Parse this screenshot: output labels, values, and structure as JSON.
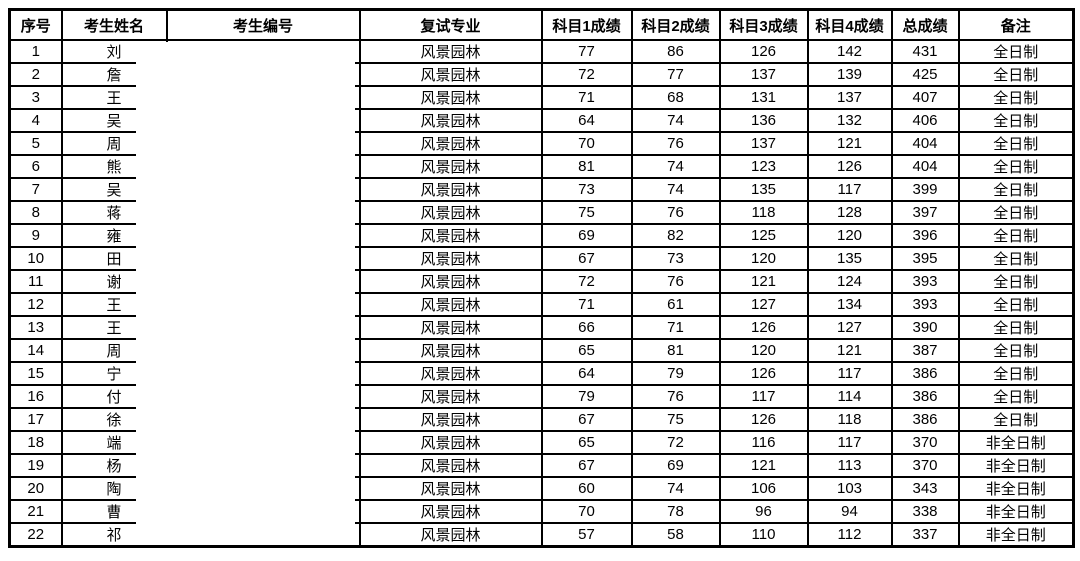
{
  "page": {
    "background": "#ffffff",
    "text_color": "#000000",
    "border_color": "#000000"
  },
  "table": {
    "columns": [
      {
        "key": "no",
        "label": "序号"
      },
      {
        "key": "name",
        "label": "考生姓名"
      },
      {
        "key": "code",
        "label": "考生编号"
      },
      {
        "key": "major",
        "label": "复试专业"
      },
      {
        "key": "s1",
        "label": "科目1成绩"
      },
      {
        "key": "s2",
        "label": "科目2成绩"
      },
      {
        "key": "s3",
        "label": "科目3成绩"
      },
      {
        "key": "s4",
        "label": "科目4成绩"
      },
      {
        "key": "total",
        "label": "总成绩"
      },
      {
        "key": "note",
        "label": "备注"
      }
    ],
    "redaction": {
      "present": true,
      "color": "#ffffff",
      "description": "White box covers the right part of every candidate name and the entire candidate-number column; only the left edge of each surname character is visible."
    },
    "rows": [
      {
        "no": "1",
        "name": "刘",
        "code": "",
        "major": "风景园林",
        "s1": 77,
        "s2": 86,
        "s3": 126,
        "s4": 142,
        "total": 431,
        "note": "全日制"
      },
      {
        "no": "2",
        "name": "詹",
        "code": "",
        "major": "风景园林",
        "s1": 72,
        "s2": 77,
        "s3": 137,
        "s4": 139,
        "total": 425,
        "note": "全日制"
      },
      {
        "no": "3",
        "name": "王",
        "code": "",
        "major": "风景园林",
        "s1": 71,
        "s2": 68,
        "s3": 131,
        "s4": 137,
        "total": 407,
        "note": "全日制"
      },
      {
        "no": "4",
        "name": "吴",
        "code": "",
        "major": "风景园林",
        "s1": 64,
        "s2": 74,
        "s3": 136,
        "s4": 132,
        "total": 406,
        "note": "全日制"
      },
      {
        "no": "5",
        "name": "周",
        "code": "",
        "major": "风景园林",
        "s1": 70,
        "s2": 76,
        "s3": 137,
        "s4": 121,
        "total": 404,
        "note": "全日制"
      },
      {
        "no": "6",
        "name": "熊",
        "code": "",
        "major": "风景园林",
        "s1": 81,
        "s2": 74,
        "s3": 123,
        "s4": 126,
        "total": 404,
        "note": "全日制"
      },
      {
        "no": "7",
        "name": "吴",
        "code": "",
        "major": "风景园林",
        "s1": 73,
        "s2": 74,
        "s3": 135,
        "s4": 117,
        "total": 399,
        "note": "全日制"
      },
      {
        "no": "8",
        "name": "蒋",
        "code": "",
        "major": "风景园林",
        "s1": 75,
        "s2": 76,
        "s3": 118,
        "s4": 128,
        "total": 397,
        "note": "全日制"
      },
      {
        "no": "9",
        "name": "雍",
        "code": "",
        "major": "风景园林",
        "s1": 69,
        "s2": 82,
        "s3": 125,
        "s4": 120,
        "total": 396,
        "note": "全日制"
      },
      {
        "no": "10",
        "name": "田",
        "code": "",
        "major": "风景园林",
        "s1": 67,
        "s2": 73,
        "s3": 120,
        "s4": 135,
        "total": 395,
        "note": "全日制"
      },
      {
        "no": "11",
        "name": "谢",
        "code": "",
        "major": "风景园林",
        "s1": 72,
        "s2": 76,
        "s3": 121,
        "s4": 124,
        "total": 393,
        "note": "全日制"
      },
      {
        "no": "12",
        "name": "王",
        "code": "",
        "major": "风景园林",
        "s1": 71,
        "s2": 61,
        "s3": 127,
        "s4": 134,
        "total": 393,
        "note": "全日制"
      },
      {
        "no": "13",
        "name": "王",
        "code": "",
        "major": "风景园林",
        "s1": 66,
        "s2": 71,
        "s3": 126,
        "s4": 127,
        "total": 390,
        "note": "全日制"
      },
      {
        "no": "14",
        "name": "周",
        "code": "",
        "major": "风景园林",
        "s1": 65,
        "s2": 81,
        "s3": 120,
        "s4": 121,
        "total": 387,
        "note": "全日制"
      },
      {
        "no": "15",
        "name": "宁",
        "code": "",
        "major": "风景园林",
        "s1": 64,
        "s2": 79,
        "s3": 126,
        "s4": 117,
        "total": 386,
        "note": "全日制"
      },
      {
        "no": "16",
        "name": "付",
        "code": "",
        "major": "风景园林",
        "s1": 79,
        "s2": 76,
        "s3": 117,
        "s4": 114,
        "total": 386,
        "note": "全日制"
      },
      {
        "no": "17",
        "name": "徐",
        "code": "",
        "major": "风景园林",
        "s1": 67,
        "s2": 75,
        "s3": 126,
        "s4": 118,
        "total": 386,
        "note": "全日制"
      },
      {
        "no": "18",
        "name": "端",
        "code": "",
        "major": "风景园林",
        "s1": 65,
        "s2": 72,
        "s3": 116,
        "s4": 117,
        "total": 370,
        "note": "非全日制"
      },
      {
        "no": "19",
        "name": "杨",
        "code": "",
        "major": "风景园林",
        "s1": 67,
        "s2": 69,
        "s3": 121,
        "s4": 113,
        "total": 370,
        "note": "非全日制"
      },
      {
        "no": "20",
        "name": "陶",
        "code": "",
        "major": "风景园林",
        "s1": 60,
        "s2": 74,
        "s3": 106,
        "s4": 103,
        "total": 343,
        "note": "非全日制"
      },
      {
        "no": "21",
        "name": "曹",
        "code": "",
        "major": "风景园林",
        "s1": 70,
        "s2": 78,
        "s3": 96,
        "s4": 94,
        "total": 338,
        "note": "非全日制"
      },
      {
        "no": "22",
        "name": "祁",
        "code": "",
        "major": "风景园林",
        "s1": 57,
        "s2": 58,
        "s3": 110,
        "s4": 112,
        "total": 337,
        "note": "非全日制"
      }
    ]
  }
}
